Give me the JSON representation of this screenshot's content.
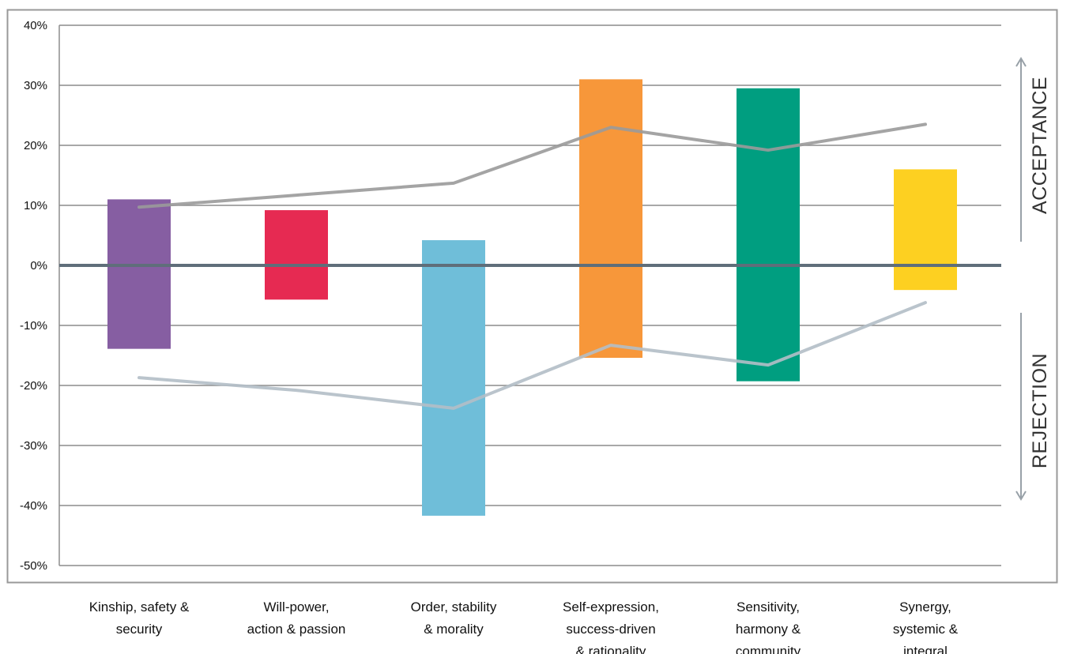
{
  "chart_data": {
    "type": "bar",
    "title": "",
    "xlabel": "",
    "ylabel": "",
    "ylim": [
      -0.5,
      0.4
    ],
    "yticks": [
      "40%",
      "30%",
      "20%",
      "10%",
      "0%",
      "-10%",
      "-20%",
      "-30%",
      "-40%",
      "-50%"
    ],
    "grid": true,
    "categories": [
      [
        "Kinship, safety &",
        "security"
      ],
      [
        "Will-power,",
        "action & passion"
      ],
      [
        "Order, stability",
        "& morality"
      ],
      [
        "Self-expression,",
        "success-driven",
        "& rationality"
      ],
      [
        "Sensitivity,",
        "harmony &",
        "community"
      ],
      [
        "Synergy,",
        "systemic &",
        "integral"
      ]
    ],
    "bars": {
      "top": [
        0.11,
        0.092,
        0.042,
        0.31,
        0.295,
        0.16
      ],
      "bottom": [
        -0.139,
        -0.057,
        -0.417,
        -0.154,
        -0.193,
        -0.041
      ],
      "colors": [
        "#865ea2",
        "#e62a52",
        "#6fbed9",
        "#f7973a",
        "#009e80",
        "#fdd021"
      ]
    },
    "lines": [
      {
        "values": [
          0.097,
          0.117,
          0.137,
          0.23,
          0.192,
          0.235
        ],
        "color": "#9a9a9a"
      },
      {
        "values": [
          -0.187,
          -0.208,
          -0.238,
          -0.133,
          -0.166,
          -0.062
        ],
        "color": "#b3bec7"
      }
    ],
    "annotations": {
      "acceptance": "ACCEPTANCE",
      "rejection": "REJECTION"
    },
    "zero_line_color": "#5f6e7a"
  }
}
